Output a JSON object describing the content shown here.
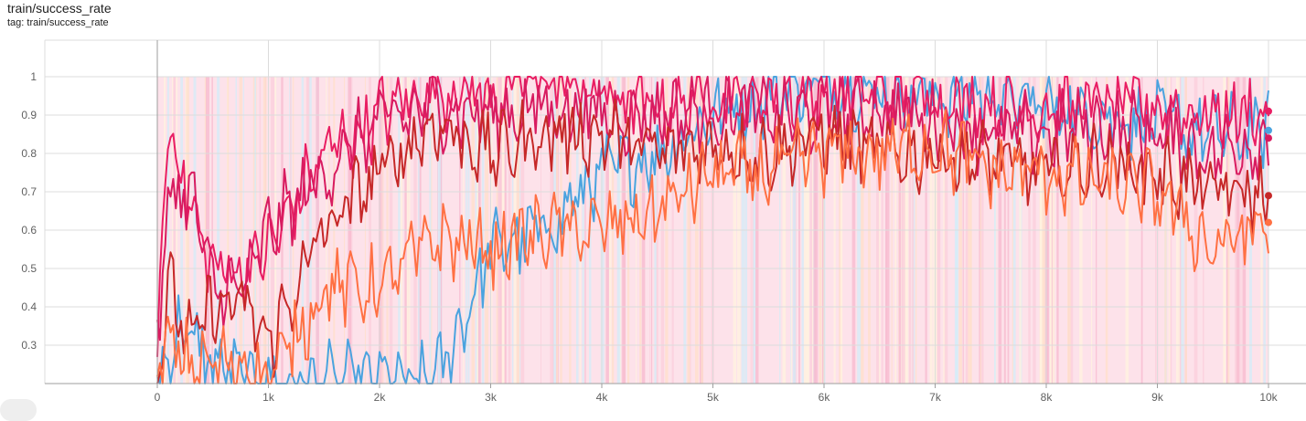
{
  "header": {
    "title": "train/success_rate",
    "tag": "tag: train/success_rate"
  },
  "chart_data": {
    "type": "line",
    "title": "train/success_rate",
    "xlabel": "",
    "ylabel": "",
    "xlim": [
      -1000,
      10300
    ],
    "ylim": [
      0.2,
      1.1
    ],
    "grid": true,
    "x_ticks": [
      0,
      1000,
      2000,
      3000,
      4000,
      5000,
      6000,
      7000,
      8000,
      9000,
      10000
    ],
    "x_tick_labels": [
      "0",
      "1k",
      "2k",
      "3k",
      "4k",
      "5k",
      "6k",
      "7k",
      "8k",
      "9k",
      "10k"
    ],
    "y_ticks": [
      0.3,
      0.4,
      0.5,
      0.6,
      0.7,
      0.8,
      0.9,
      1.0
    ],
    "y_tick_labels": [
      "0.3",
      "0.4",
      "0.5",
      "0.6",
      "0.7",
      "0.8",
      "0.9",
      "1"
    ],
    "series": [
      {
        "color": "#4aa3df",
        "x": [
          0,
          200,
          500,
          800,
          1000,
          1500,
          2000,
          2500,
          2800,
          3000,
          3500,
          4000,
          4500,
          5000,
          5500,
          6000,
          6500,
          7000,
          7500,
          8000,
          8500,
          9000,
          9500,
          10000
        ],
        "y": [
          0.2,
          0.35,
          0.25,
          0.2,
          0.2,
          0.2,
          0.2,
          0.2,
          0.4,
          0.55,
          0.6,
          0.75,
          0.8,
          0.9,
          0.95,
          1.0,
          0.95,
          0.95,
          0.95,
          0.92,
          0.9,
          0.88,
          0.85,
          0.86
        ]
      },
      {
        "color": "#e91e63",
        "x": [
          0,
          100,
          300,
          500,
          800,
          1000,
          1500,
          2000,
          2500,
          3000,
          3500,
          4000,
          4500,
          5000,
          5500,
          6000,
          6500,
          7000,
          7500,
          8000,
          8500,
          9000,
          9500,
          10000
        ],
        "y": [
          0.3,
          0.9,
          0.65,
          0.5,
          0.5,
          0.55,
          0.8,
          0.9,
          0.98,
          0.95,
          1.0,
          0.95,
          0.92,
          0.95,
          0.95,
          0.95,
          0.97,
          0.95,
          0.93,
          0.92,
          0.93,
          0.92,
          0.9,
          0.91
        ]
      },
      {
        "color": "#d81b60",
        "x": [
          0,
          100,
          300,
          500,
          800,
          1000,
          1500,
          2000,
          2500,
          3000,
          3500,
          4000,
          4500,
          5000,
          5500,
          6000,
          6500,
          7000,
          7500,
          8000,
          8500,
          9000,
          9500,
          10000
        ],
        "y": [
          0.25,
          0.7,
          0.7,
          0.45,
          0.45,
          0.6,
          0.75,
          0.88,
          0.92,
          0.9,
          0.92,
          0.9,
          0.9,
          0.92,
          0.9,
          0.9,
          0.92,
          0.88,
          0.85,
          0.85,
          0.87,
          0.85,
          0.8,
          0.84
        ]
      },
      {
        "color": "#c62828",
        "x": [
          0,
          100,
          300,
          500,
          800,
          1000,
          1500,
          2000,
          2500,
          3000,
          3500,
          4000,
          4500,
          5000,
          5500,
          6000,
          6500,
          7000,
          7500,
          8000,
          8500,
          9000,
          9500,
          10000
        ],
        "y": [
          0.2,
          0.45,
          0.3,
          0.4,
          0.4,
          0.3,
          0.6,
          0.75,
          0.88,
          0.8,
          0.85,
          0.85,
          0.8,
          0.82,
          0.8,
          0.85,
          0.8,
          0.8,
          0.78,
          0.75,
          0.78,
          0.75,
          0.7,
          0.69
        ]
      },
      {
        "color": "#ff7043",
        "x": [
          0,
          100,
          300,
          500,
          800,
          1000,
          1500,
          2000,
          2500,
          3000,
          3500,
          4000,
          4500,
          5000,
          5500,
          6000,
          6500,
          7000,
          7500,
          8000,
          8500,
          9000,
          9500,
          10000
        ],
        "y": [
          0.2,
          0.3,
          0.25,
          0.25,
          0.25,
          0.2,
          0.45,
          0.45,
          0.58,
          0.55,
          0.6,
          0.6,
          0.65,
          0.75,
          0.75,
          0.8,
          0.8,
          0.82,
          0.75,
          0.75,
          0.72,
          0.7,
          0.55,
          0.62
        ]
      }
    ]
  }
}
